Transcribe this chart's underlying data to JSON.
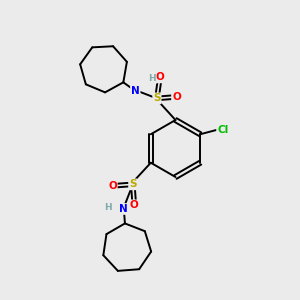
{
  "background_color": "#ebebeb",
  "figsize": [
    3.0,
    3.0
  ],
  "dpi": 100,
  "atom_colors": {
    "C": "#000000",
    "H": "#7faaaa",
    "N": "#0000ff",
    "O": "#ff0000",
    "S": "#bbaa00",
    "Cl": "#00bb00"
  },
  "bond_color": "#000000",
  "bond_width": 1.4,
  "font_size_atoms": 7.5,
  "font_size_H": 6.5
}
